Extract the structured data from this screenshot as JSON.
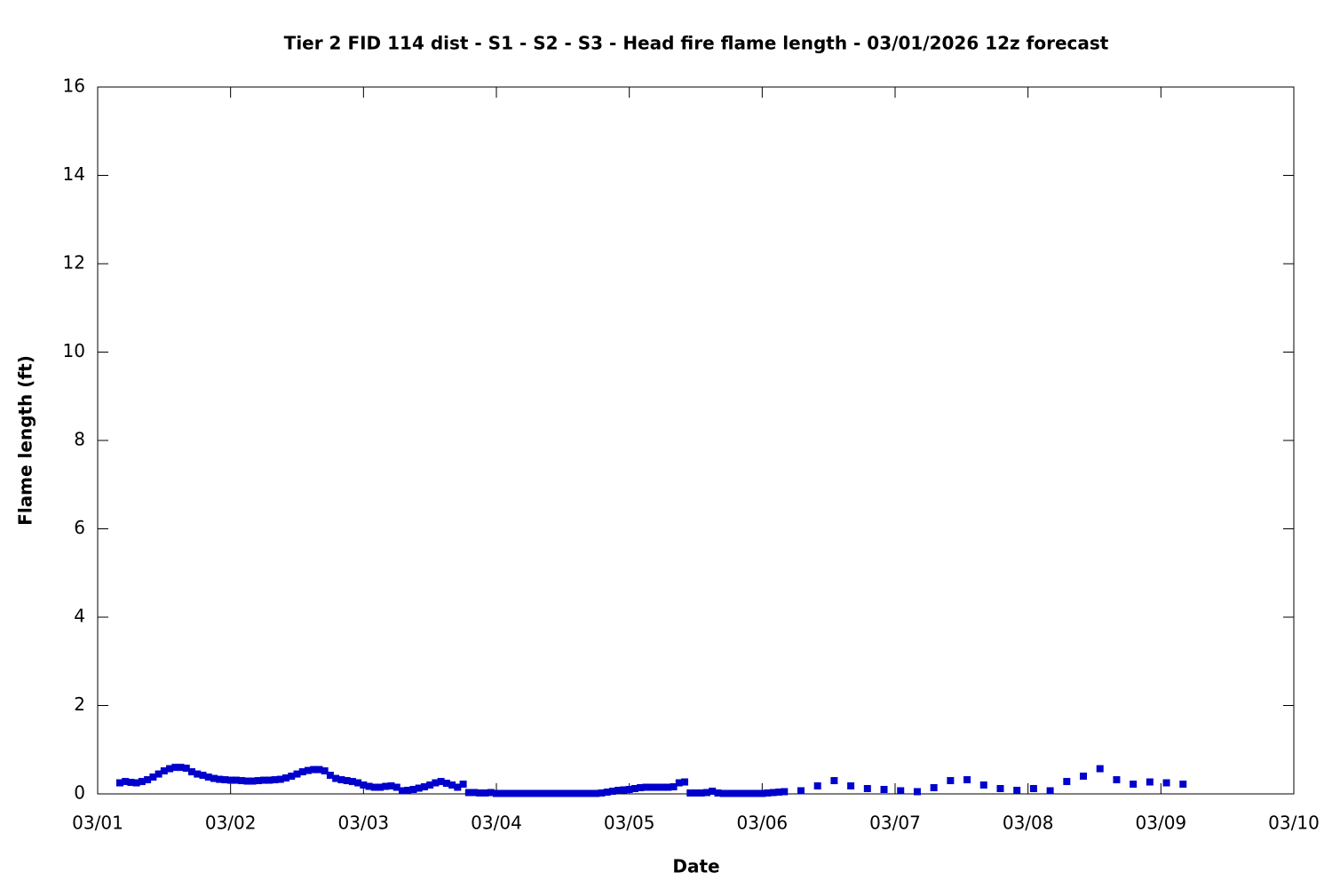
{
  "chart_data": {
    "type": "scatter",
    "title": "Tier 2 FID 114 dist - S1 - S2 - S3 - Head fire flame length - 03/01/2026 12z forecast",
    "xlabel": "Date",
    "ylabel": "Flame length (ft)",
    "xlim": [
      0,
      216
    ],
    "xticks": [
      {
        "value": 0,
        "label": "03/01"
      },
      {
        "value": 24,
        "label": "03/02"
      },
      {
        "value": 48,
        "label": "03/03"
      },
      {
        "value": 72,
        "label": "03/04"
      },
      {
        "value": 96,
        "label": "03/05"
      },
      {
        "value": 120,
        "label": "03/06"
      },
      {
        "value": 144,
        "label": "03/07"
      },
      {
        "value": 168,
        "label": "03/08"
      },
      {
        "value": 192,
        "label": "03/09"
      },
      {
        "value": 216,
        "label": "03/10"
      }
    ],
    "ylim": [
      0,
      16
    ],
    "yticks": [
      0,
      2,
      4,
      6,
      8,
      10,
      12,
      14,
      16
    ],
    "grid": false,
    "series": [
      {
        "color": "#0000cc",
        "x": [
          4,
          5,
          6,
          7,
          8,
          9,
          10,
          11,
          12,
          13,
          14,
          15,
          16,
          17,
          18,
          19,
          20,
          21,
          22,
          23,
          24,
          25,
          26,
          27,
          28,
          29,
          30,
          31,
          32,
          33,
          34,
          35,
          36,
          37,
          38,
          39,
          40,
          41,
          42,
          43,
          44,
          45,
          46,
          47,
          48,
          49,
          50,
          51,
          52,
          53,
          54,
          55,
          56,
          57,
          58,
          59,
          60,
          61,
          62,
          63,
          64,
          65,
          66,
          67,
          68,
          69,
          70,
          71,
          72,
          73,
          74,
          75,
          76,
          77,
          78,
          79,
          80,
          81,
          82,
          83,
          84,
          85,
          86,
          87,
          88,
          89,
          90,
          91,
          92,
          93,
          94,
          95,
          96,
          97,
          98,
          99,
          100,
          101,
          102,
          103,
          104,
          105,
          106,
          107,
          108,
          109,
          110,
          111,
          112,
          113,
          114,
          115,
          116,
          117,
          118,
          119,
          120,
          121,
          122,
          123,
          124,
          127,
          130,
          133,
          136,
          139,
          142,
          145,
          148,
          151,
          154,
          157,
          160,
          163,
          166,
          169,
          172,
          175,
          178,
          181,
          184,
          187,
          190,
          193,
          196
        ],
        "values": [
          0.25,
          0.28,
          0.26,
          0.25,
          0.28,
          0.32,
          0.38,
          0.45,
          0.52,
          0.57,
          0.6,
          0.6,
          0.58,
          0.5,
          0.45,
          0.42,
          0.38,
          0.35,
          0.33,
          0.32,
          0.31,
          0.31,
          0.3,
          0.29,
          0.29,
          0.3,
          0.31,
          0.31,
          0.32,
          0.33,
          0.36,
          0.4,
          0.45,
          0.5,
          0.53,
          0.55,
          0.55,
          0.52,
          0.42,
          0.35,
          0.32,
          0.3,
          0.28,
          0.25,
          0.2,
          0.17,
          0.15,
          0.15,
          0.17,
          0.18,
          0.15,
          0.07,
          0.08,
          0.1,
          0.13,
          0.16,
          0.2,
          0.25,
          0.28,
          0.24,
          0.2,
          0.15,
          0.22,
          0.03,
          0.03,
          0.02,
          0.02,
          0.03,
          0.01,
          0.01,
          0.01,
          0.01,
          0.01,
          0.01,
          0.01,
          0.01,
          0.01,
          0.01,
          0.01,
          0.01,
          0.01,
          0.01,
          0.01,
          0.01,
          0.01,
          0.01,
          0.01,
          0.02,
          0.04,
          0.06,
          0.08,
          0.09,
          0.1,
          0.12,
          0.14,
          0.15,
          0.15,
          0.15,
          0.15,
          0.15,
          0.16,
          0.25,
          0.27,
          0.02,
          0.02,
          0.02,
          0.03,
          0.06,
          0.02,
          0.01,
          0.01,
          0.01,
          0.01,
          0.01,
          0.01,
          0.01,
          0.01,
          0.02,
          0.03,
          0.04,
          0.05,
          0.07,
          0.18,
          0.3,
          0.18,
          0.12,
          0.1,
          0.07,
          0.05,
          0.14,
          0.3,
          0.32,
          0.2,
          0.12,
          0.08,
          0.12,
          0.07,
          0.28,
          0.4,
          0.57,
          0.32,
          0.22,
          0.27,
          0.25,
          0.22
        ]
      }
    ]
  }
}
